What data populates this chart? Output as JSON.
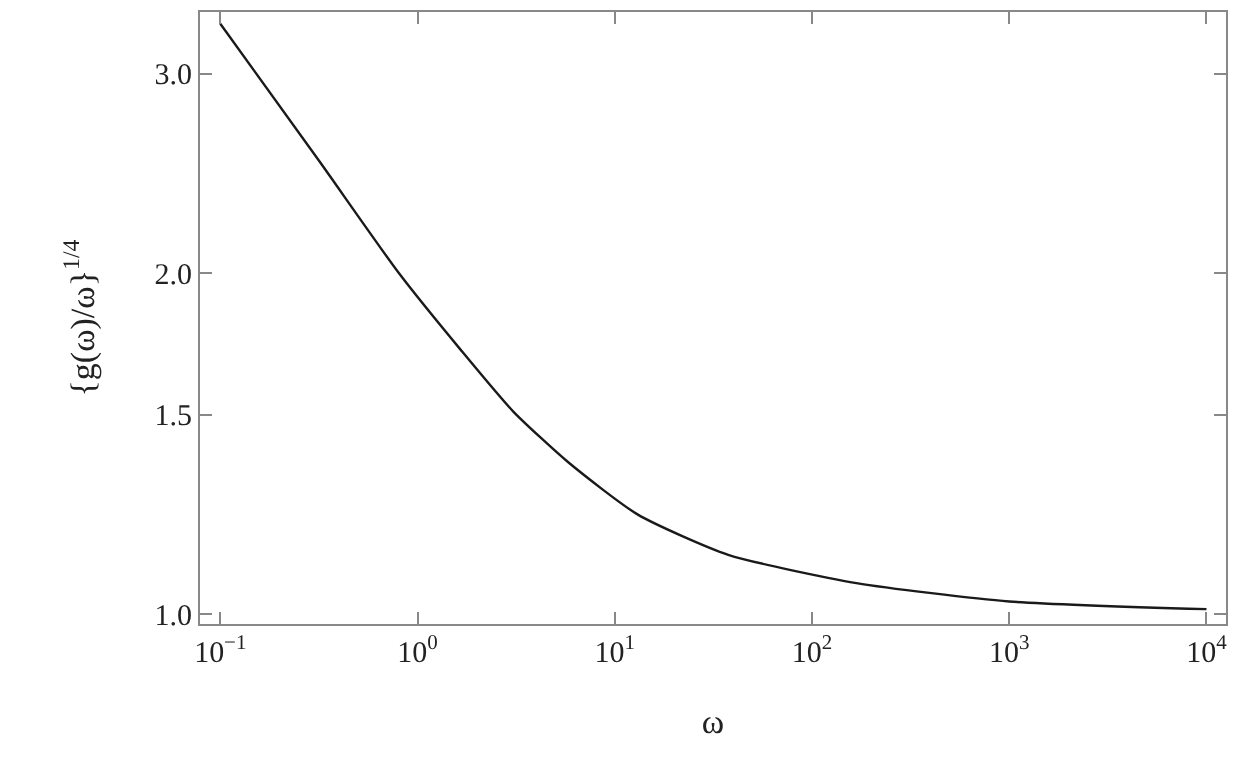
{
  "chart_data": {
    "type": "line",
    "xlabel": "ω",
    "ylabel": "{g(ω)/ω}$^{1/4}$",
    "log": "xy",
    "legend": false,
    "marker": "none",
    "line_style": "solid",
    "xlim": [
      0.0789,
      12560
    ],
    "ylim": [
      0.98,
      3.4
    ],
    "xticks": [
      {
        "value": 0.1,
        "label": "10$^{−1}$"
      },
      {
        "value": 1,
        "label": "10$^{0}$"
      },
      {
        "value": 10,
        "label": "10$^{1}$"
      },
      {
        "value": 100,
        "label": "10$^{2}$"
      },
      {
        "value": 1000,
        "label": "10$^{3}$"
      },
      {
        "value": 10000,
        "label": "10$^{4}$"
      }
    ],
    "yticks": [
      {
        "value": 1,
        "label": "1.0"
      },
      {
        "value": 1.5,
        "label": "1.5"
      },
      {
        "value": 2,
        "label": "2.0"
      },
      {
        "value": 3,
        "label": "3.0"
      }
    ],
    "x": [
      0.1,
      0.318,
      0.804,
      1.66,
      3.05,
      5.85,
      13.1,
      37.6,
      168,
      1000,
      10000
    ],
    "series": [
      {
        "color": "#1a1a1a",
        "values": [
          3.32,
          2.51,
          2.0,
          1.71,
          1.51,
          1.36,
          1.224,
          1.128,
          1.065,
          1.026,
          1.01
        ]
      }
    ]
  }
}
